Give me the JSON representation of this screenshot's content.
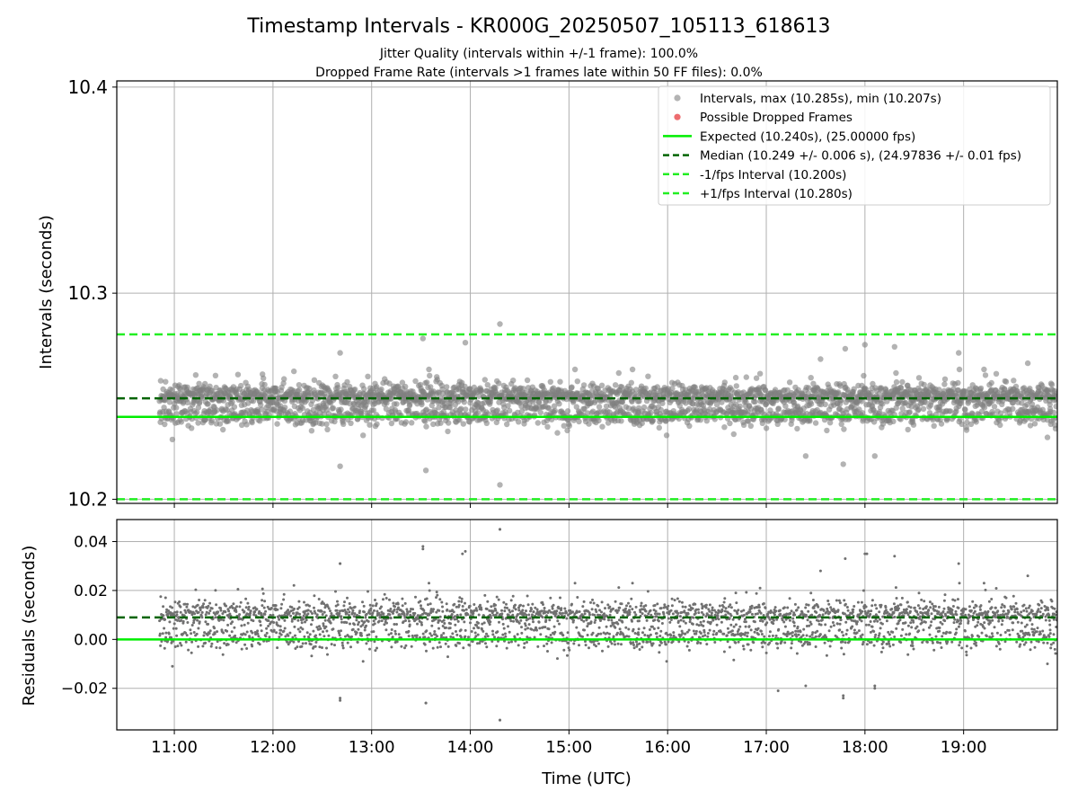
{
  "figure": {
    "title": "Timestamp Intervals - KR000G_20250507_105113_618613",
    "subtitle_1": "Jitter Quality (intervals within +/-1 frame): 100.0%",
    "subtitle_2": "Dropped Frame Rate (intervals >1 frames late within 50 FF files): 0.0%"
  },
  "colors": {
    "points": "#808080",
    "dropped": "#e8474b",
    "expected": "#00ee00",
    "median": "#006400",
    "fps_interval": "#22ee22",
    "grid": "#b0b0b0"
  },
  "chart_data": [
    {
      "type": "scatter",
      "ylabel": "Intervals (seconds)",
      "xlim_hours": [
        10.4167,
        19.95
      ],
      "ylim": [
        10.198,
        10.403
      ],
      "yticks": [
        {
          "v": 10.2,
          "label": "10.2"
        },
        {
          "v": 10.3,
          "label": "10.3"
        },
        {
          "v": 10.4,
          "label": "10.4"
        }
      ],
      "xtick_hours": [
        11,
        12,
        13,
        14,
        15,
        16,
        17,
        18,
        19
      ],
      "grid": true,
      "legend_position": "upper-right",
      "legend": [
        {
          "kind": "marker",
          "color": "#a0a0a0",
          "label": "Intervals, max (10.285s), min (10.207s)"
        },
        {
          "kind": "marker",
          "color": "#e8474b",
          "label": "Possible Dropped Frames"
        },
        {
          "kind": "line",
          "style": "solid",
          "color": "#00ee00",
          "label": "Expected (10.240s), (25.00000 fps)"
        },
        {
          "kind": "line",
          "style": "dashed",
          "color": "#006400",
          "label": "Median (10.249 +/- 0.006 s), (24.97836 +/- 0.01 fps)"
        },
        {
          "kind": "line",
          "style": "dashed",
          "color": "#22ee22",
          "label": "-1/fps Interval (10.200s)"
        },
        {
          "kind": "line",
          "style": "dashed",
          "color": "#22ee22",
          "label": "+1/fps Interval (10.280s)"
        }
      ],
      "expected": 10.24,
      "median": 10.249,
      "median_std": 0.006,
      "minus_interval": 10.2,
      "plus_interval": 10.28,
      "max_interval": 10.285,
      "min_interval": 10.207,
      "data_time_range": [
        "10:51",
        "19:57"
      ],
      "series": [
        {
          "name": "Intervals, max (10.285s), min (10.207s)",
          "summary": "about 3100 samples, one every 10.24 s",
          "outliers": [
            [
              13.52,
              10.278
            ],
            [
              13.95,
              10.276
            ],
            [
              14.3,
              10.285
            ],
            [
              14.3,
              10.207
            ],
            [
              13.55,
              10.214
            ],
            [
              12.68,
              10.216
            ],
            [
              12.68,
              10.271
            ],
            [
              17.55,
              10.268
            ],
            [
              17.78,
              10.217
            ],
            [
              17.8,
              10.273
            ],
            [
              18.0,
              10.275
            ],
            [
              18.3,
              10.274
            ],
            [
              18.95,
              10.271
            ],
            [
              19.65,
              10.266
            ],
            [
              17.4,
              10.221
            ],
            [
              18.1,
              10.221
            ],
            [
              19.85,
              10.23
            ],
            [
              10.98,
              10.229
            ]
          ]
        }
      ]
    },
    {
      "type": "scatter",
      "xlabel": "Time (UTC)",
      "ylabel": "Residuals (seconds)",
      "xlim_hours": [
        10.4167,
        19.95
      ],
      "ylim": [
        -0.037,
        0.049
      ],
      "yticks": [
        {
          "v": -0.02,
          "label": "−0.02"
        },
        {
          "v": 0.0,
          "label": "0.00"
        },
        {
          "v": 0.02,
          "label": "0.02"
        },
        {
          "v": 0.04,
          "label": "0.04"
        }
      ],
      "xtick_hours": [
        11,
        12,
        13,
        14,
        15,
        16,
        17,
        18,
        19
      ],
      "xtick_labels": [
        "11:00",
        "12:00",
        "13:00",
        "14:00",
        "15:00",
        "16:00",
        "17:00",
        "18:00",
        "19:00"
      ],
      "grid": true,
      "zero_line": 0.0,
      "median_residual": 0.009,
      "series": [
        {
          "name": "Residuals",
          "summary": "interval minus expected (10.240 s)",
          "outliers": [
            [
              14.3,
              0.045
            ],
            [
              14.3,
              -0.033
            ],
            [
              13.55,
              -0.026
            ],
            [
              12.68,
              -0.025
            ],
            [
              13.52,
              0.037
            ],
            [
              13.92,
              0.035
            ],
            [
              17.78,
              -0.024
            ],
            [
              18.02,
              0.035
            ],
            [
              18.1,
              -0.02
            ],
            [
              17.12,
              -0.021
            ],
            [
              12.68,
              0.031
            ]
          ]
        }
      ]
    }
  ]
}
